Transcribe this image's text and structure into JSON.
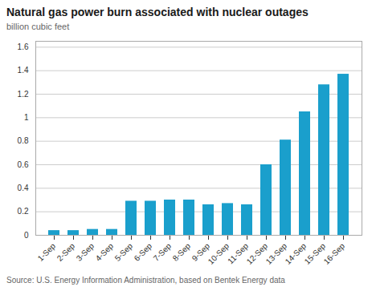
{
  "chart_data": {
    "type": "bar",
    "title": "Natural gas power burn associated with nuclear outages",
    "subtitle": "billion cubic feet",
    "source": "Source: U.S. Energy Information Administration, based on Bentek Energy data",
    "categories": [
      "1-Sep",
      "2-Sep",
      "3-Sep",
      "4-Sep",
      "5-Sep",
      "6-Sep",
      "7-Sep",
      "8-Sep",
      "9-Sep",
      "10-Sep",
      "11-Sep",
      "12-Sep",
      "13-Sep",
      "14-Sep",
      "15-Sep",
      "16-Sep"
    ],
    "values": [
      0.04,
      0.04,
      0.05,
      0.05,
      0.29,
      0.29,
      0.3,
      0.3,
      0.26,
      0.27,
      0.26,
      0.6,
      0.81,
      1.05,
      1.28,
      1.37
    ],
    "color": "#1a9fcc",
    "ylim": [
      0,
      1.65
    ],
    "yticks": [
      0,
      0.2,
      0.4,
      0.6,
      0.8,
      1,
      1.2,
      1.4,
      1.6
    ],
    "grid": true
  }
}
